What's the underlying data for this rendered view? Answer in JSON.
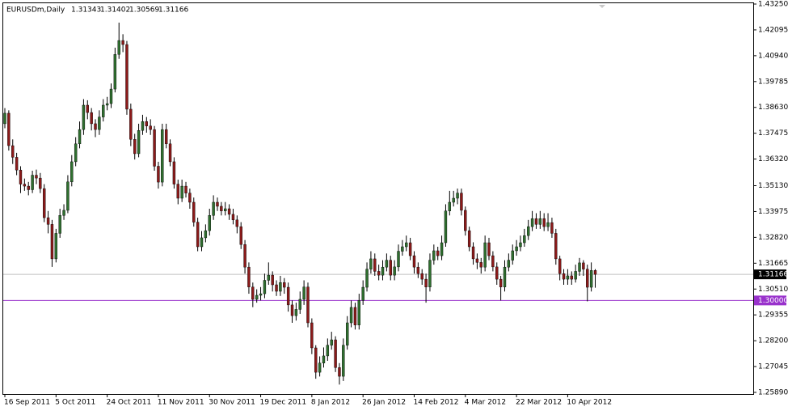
{
  "chart_data": {
    "type": "candlestick",
    "symbol": "EURUSDm,Daily",
    "header_ohlc": [
      1.31343,
      1.31402,
      1.30569,
      1.31166
    ],
    "up_color": "#2f6f2f",
    "down_color": "#8b1a1a",
    "wick_color": "#000000",
    "categories": [
      "16 Sep 2011",
      null,
      null,
      null,
      null,
      null,
      null,
      null,
      null,
      null,
      null,
      null,
      null,
      "5 Oct 2011",
      null,
      null,
      null,
      null,
      null,
      null,
      null,
      null,
      null,
      null,
      null,
      null,
      "24 Oct 2011",
      null,
      null,
      null,
      null,
      null,
      null,
      null,
      null,
      null,
      null,
      null,
      null,
      "11 Nov 2011",
      null,
      null,
      null,
      null,
      null,
      null,
      null,
      null,
      null,
      null,
      null,
      null,
      "30 Nov 2011",
      null,
      null,
      null,
      null,
      null,
      null,
      null,
      null,
      null,
      null,
      null,
      null,
      "19 Dec 2011",
      null,
      null,
      null,
      null,
      null,
      null,
      null,
      null,
      null,
      null,
      null,
      null,
      "8 Jan 2012",
      null,
      null,
      null,
      null,
      null,
      null,
      null,
      null,
      null,
      null,
      null,
      null,
      "26 Jan 2012",
      null,
      null,
      null,
      null,
      null,
      null,
      null,
      null,
      null,
      null,
      null,
      null,
      "14 Feb 2012",
      null,
      null,
      null,
      null,
      null,
      null,
      null,
      null,
      null,
      null,
      null,
      null,
      "4 Mar 2012",
      null,
      null,
      null,
      null,
      null,
      null,
      null,
      null,
      null,
      null,
      null,
      null,
      "22 Mar 2012",
      null,
      null,
      null,
      null,
      null,
      null,
      null,
      null,
      null,
      null,
      null,
      null,
      "10 Apr 2012",
      null,
      null,
      null,
      null,
      null,
      null,
      null
    ],
    "open": [
      1.379,
      1.3837,
      1.3692,
      1.364,
      1.3583,
      1.352,
      1.3511,
      1.3495,
      1.356,
      1.3547,
      1.35,
      1.337,
      1.334,
      1.3186,
      1.33,
      1.338,
      1.3403,
      1.353,
      1.362,
      1.37,
      1.3764,
      1.3873,
      1.384,
      1.379,
      1.3764,
      1.382,
      1.3873,
      1.388,
      1.3945,
      1.41,
      1.4162,
      1.4144,
      1.3855,
      1.372,
      1.3656,
      1.376,
      1.38,
      1.378,
      1.3764,
      1.36,
      1.3529,
      1.3764,
      1.37,
      1.362,
      1.352,
      1.3457,
      1.3511,
      1.348,
      1.3439,
      1.335,
      1.324,
      1.328,
      1.3312,
      1.338,
      1.3439,
      1.3421,
      1.34,
      1.341,
      1.3385,
      1.336,
      1.333,
      1.325,
      1.3149,
      1.306,
      1.3005,
      1.3023,
      1.303,
      1.309,
      1.3113,
      1.307,
      1.3041,
      1.308,
      1.3059,
      1.298,
      1.2932,
      1.296,
      1.3005,
      1.306,
      1.29,
      1.2788,
      1.2679,
      1.272,
      1.2752,
      1.28,
      1.2824,
      1.27,
      1.2661,
      1.28,
      1.29,
      1.2969,
      1.289,
      1.3,
      1.3059,
      1.314,
      1.3186,
      1.313,
      1.3113,
      1.3149,
      1.318,
      1.3113,
      1.315,
      1.322,
      1.324,
      1.3258,
      1.32,
      1.3149,
      1.312,
      1.3095,
      1.306,
      1.318,
      1.3222,
      1.32,
      1.3258,
      1.34,
      1.3439,
      1.3457,
      1.348,
      1.3403,
      1.3312,
      1.324,
      1.3186,
      1.317,
      1.3149,
      1.3258,
      1.32,
      1.315,
      1.3095,
      1.306,
      1.3149,
      1.318,
      1.3222,
      1.324,
      1.3258,
      1.329,
      1.333,
      1.3366,
      1.334,
      1.3366,
      1.333,
      1.3348,
      1.33,
      1.3186,
      1.312,
      1.3095,
      1.311,
      1.3095,
      1.313,
      1.3168,
      1.314,
      1.3059,
      1.31343
    ],
    "high": [
      1.386,
      1.385,
      1.372,
      1.366,
      1.36,
      1.3545,
      1.353,
      1.358,
      1.3585,
      1.357,
      1.352,
      1.34,
      1.336,
      1.332,
      1.341,
      1.343,
      1.356,
      1.365,
      1.373,
      1.38,
      1.39,
      1.3895,
      1.386,
      1.381,
      1.385,
      1.39,
      1.391,
      1.397,
      1.413,
      1.4242,
      1.419,
      1.416,
      1.388,
      1.3745,
      1.379,
      1.383,
      1.382,
      1.381,
      1.378,
      1.362,
      1.379,
      1.379,
      1.372,
      1.364,
      1.354,
      1.354,
      1.353,
      1.35,
      1.346,
      1.337,
      1.331,
      1.334,
      1.341,
      1.347,
      1.346,
      1.344,
      1.344,
      1.343,
      1.341,
      1.338,
      1.335,
      1.327,
      1.317,
      1.308,
      1.305,
      1.306,
      1.312,
      1.317,
      1.313,
      1.309,
      1.311,
      1.31,
      1.308,
      1.3,
      1.299,
      1.304,
      1.309,
      1.308,
      1.292,
      1.28,
      1.275,
      1.279,
      1.283,
      1.286,
      1.284,
      1.272,
      1.283,
      1.293,
      1.3,
      1.299,
      1.303,
      1.309,
      1.317,
      1.322,
      1.321,
      1.316,
      1.318,
      1.321,
      1.32,
      1.318,
      1.325,
      1.327,
      1.329,
      1.328,
      1.322,
      1.317,
      1.314,
      1.312,
      1.321,
      1.325,
      1.324,
      1.329,
      1.343,
      1.349,
      1.349,
      1.35,
      1.35,
      1.342,
      1.333,
      1.326,
      1.321,
      1.319,
      1.329,
      1.328,
      1.322,
      1.317,
      1.311,
      1.318,
      1.321,
      1.325,
      1.327,
      1.329,
      1.332,
      1.336,
      1.34,
      1.339,
      1.34,
      1.339,
      1.339,
      1.337,
      1.332,
      1.32,
      1.314,
      1.314,
      1.313,
      1.316,
      1.319,
      1.318,
      1.316,
      1.317,
      1.31402
    ],
    "low": [
      1.377,
      1.367,
      1.361,
      1.356,
      1.348,
      1.349,
      1.347,
      1.348,
      1.352,
      1.348,
      1.335,
      1.33,
      1.315,
      1.317,
      1.328,
      1.336,
      1.339,
      1.351,
      1.36,
      1.368,
      1.374,
      1.381,
      1.376,
      1.373,
      1.374,
      1.38,
      1.385,
      1.386,
      1.393,
      1.408,
      1.411,
      1.383,
      1.369,
      1.363,
      1.364,
      1.374,
      1.375,
      1.374,
      1.358,
      1.35,
      1.351,
      1.368,
      1.36,
      1.35,
      1.343,
      1.344,
      1.346,
      1.341,
      1.333,
      1.322,
      1.322,
      1.326,
      1.329,
      1.336,
      1.34,
      1.338,
      1.338,
      1.336,
      1.334,
      1.33,
      1.323,
      1.312,
      1.303,
      1.297,
      1.299,
      1.3,
      1.301,
      1.307,
      1.304,
      1.302,
      1.302,
      1.303,
      1.295,
      1.29,
      1.291,
      1.294,
      1.298,
      1.288,
      1.276,
      1.265,
      1.266,
      1.27,
      1.273,
      1.278,
      1.268,
      1.2624,
      1.264,
      1.278,
      1.288,
      1.287,
      1.287,
      1.298,
      1.304,
      1.312,
      1.311,
      1.309,
      1.309,
      1.313,
      1.309,
      1.309,
      1.313,
      1.32,
      1.322,
      1.318,
      1.312,
      1.31,
      1.307,
      1.299,
      1.304,
      1.316,
      1.318,
      1.318,
      1.324,
      1.338,
      1.342,
      1.343,
      1.338,
      1.329,
      1.322,
      1.316,
      1.314,
      1.312,
      1.313,
      1.318,
      1.313,
      1.307,
      1.3,
      1.304,
      1.313,
      1.316,
      1.32,
      1.322,
      1.324,
      1.327,
      1.331,
      1.332,
      1.332,
      1.331,
      1.331,
      1.328,
      1.316,
      1.309,
      1.307,
      1.307,
      1.307,
      1.308,
      1.311,
      1.311,
      1.2996,
      1.304,
      1.30569
    ],
    "close": [
      1.3837,
      1.3692,
      1.364,
      1.3583,
      1.352,
      1.3511,
      1.3495,
      1.356,
      1.3547,
      1.35,
      1.337,
      1.334,
      1.3186,
      1.33,
      1.338,
      1.3403,
      1.353,
      1.362,
      1.37,
      1.3764,
      1.3873,
      1.384,
      1.379,
      1.3764,
      1.382,
      1.3873,
      1.388,
      1.3945,
      1.41,
      1.4162,
      1.4144,
      1.3855,
      1.372,
      1.3656,
      1.376,
      1.38,
      1.378,
      1.3764,
      1.36,
      1.3529,
      1.3764,
      1.37,
      1.362,
      1.352,
      1.3457,
      1.3511,
      1.348,
      1.3439,
      1.335,
      1.324,
      1.328,
      1.3312,
      1.338,
      1.3439,
      1.3421,
      1.34,
      1.341,
      1.3385,
      1.336,
      1.333,
      1.325,
      1.3149,
      1.306,
      1.3005,
      1.3023,
      1.303,
      1.309,
      1.3113,
      1.307,
      1.3041,
      1.308,
      1.3059,
      1.298,
      1.2932,
      1.296,
      1.3005,
      1.306,
      1.29,
      1.2788,
      1.2679,
      1.272,
      1.2752,
      1.28,
      1.2824,
      1.27,
      1.2661,
      1.28,
      1.29,
      1.2969,
      1.289,
      1.3,
      1.3059,
      1.314,
      1.3186,
      1.313,
      1.3113,
      1.3149,
      1.318,
      1.3113,
      1.315,
      1.322,
      1.324,
      1.3258,
      1.32,
      1.3149,
      1.312,
      1.3095,
      1.306,
      1.318,
      1.3222,
      1.32,
      1.3258,
      1.34,
      1.3439,
      1.3457,
      1.348,
      1.3403,
      1.3312,
      1.324,
      1.3186,
      1.317,
      1.3149,
      1.3258,
      1.32,
      1.315,
      1.3095,
      1.306,
      1.3149,
      1.318,
      1.3222,
      1.324,
      1.3258,
      1.329,
      1.333,
      1.3366,
      1.334,
      1.3366,
      1.333,
      1.3348,
      1.33,
      1.3186,
      1.312,
      1.3095,
      1.311,
      1.3095,
      1.313,
      1.3168,
      1.314,
      1.3059,
      1.3134,
      1.31166
    ],
    "ylim": [
      1.2589,
      1.4325
    ],
    "yticks": [
      {
        "value": 1.4325,
        "label": "1.43250"
      },
      1.42095,
      {
        "value": 1.4094,
        "label": "1.40940"
      },
      1.39785,
      {
        "value": 1.3863,
        "label": "1.38630"
      },
      1.37475,
      {
        "value": 1.3632,
        "label": "1.36320"
      },
      {
        "value": 1.3513,
        "label": "1.35130"
      },
      1.33975,
      {
        "value": 1.3282,
        "label": "1.32820"
      },
      1.31665,
      {
        "value": 1.3051,
        "label": "1.30510"
      },
      1.29355,
      {
        "value": 1.282,
        "label": "1.28200"
      },
      1.27045,
      {
        "value": 1.2589,
        "label": "1.25890"
      }
    ],
    "current_price": 1.31166,
    "current_price_color": "#c0c0c0",
    "level": {
      "value": 1.3,
      "label": "1.30000"
    },
    "level_color": "#9932cc"
  }
}
